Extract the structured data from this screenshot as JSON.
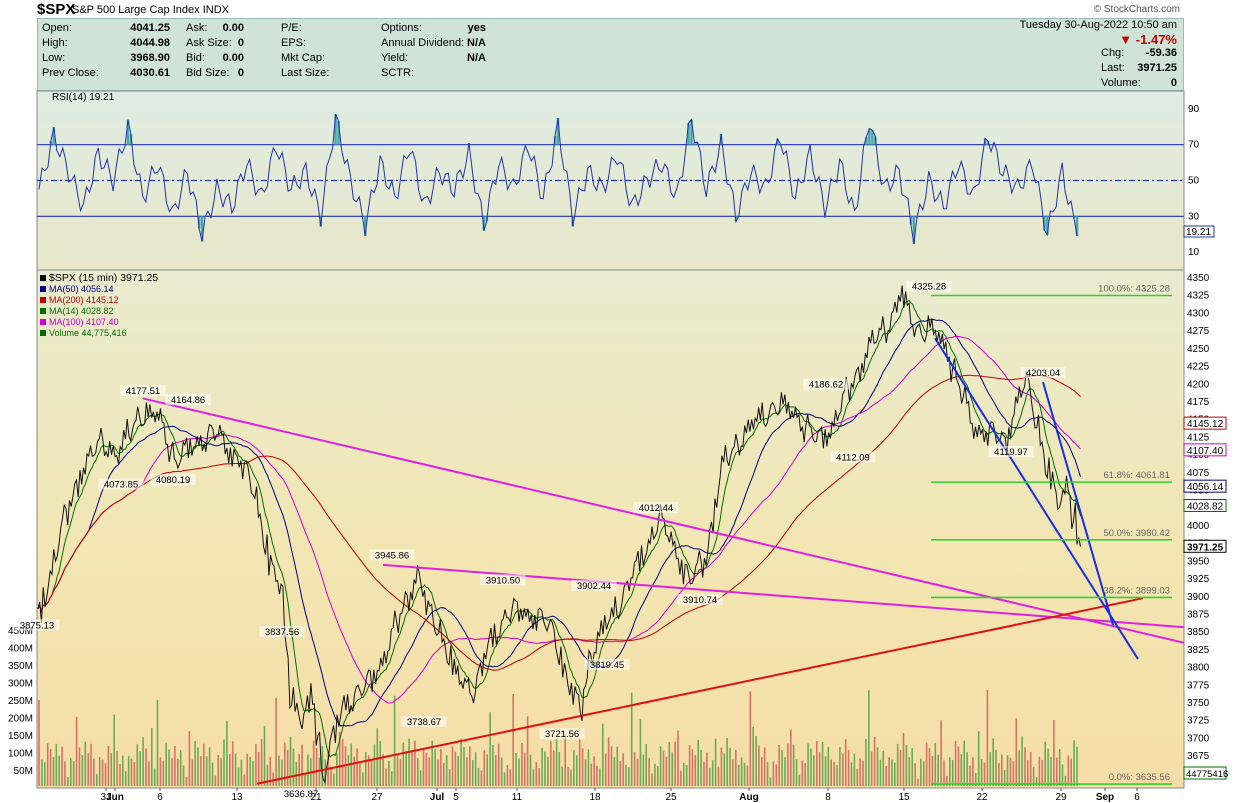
{
  "header": {
    "symbol": "$SPX",
    "name": "S&P 500 Large Cap Index",
    "exchange": "INDX",
    "copyright": "© StockCharts.com"
  },
  "quote": {
    "datetime": "Tuesday  30-Aug-2022 10:50 am",
    "change_pct": "-1.47%",
    "rows": [
      {
        "k1": "Open:",
        "v1": "4041.25",
        "k2": "Ask:",
        "v2": "0.00",
        "k3": "P/E:",
        "k4": "Options:",
        "v4": "yes",
        "k5": "",
        "v5": ""
      },
      {
        "k1": "High:",
        "v1": "4044.98",
        "k2": "Ask Size:",
        "v2": "0",
        "k3": "EPS:",
        "k4": "Annual Dividend:",
        "v4": "N/A",
        "k5": "Chg:",
        "v5": "-59.36"
      },
      {
        "k1": "Low:",
        "v1": "3968.90",
        "k2": "Bid:",
        "v2": "0.00",
        "k3": "Mkt Cap:",
        "k4": "Yield:",
        "v4": "N/A",
        "k5": "Last:",
        "v5": "3971.25"
      },
      {
        "k1": "Prev Close:",
        "v1": "4030.61",
        "k2": "Bid Size:",
        "v2": "0",
        "k3": "Last Size:",
        "k4": "SCTR:",
        "v4": "",
        "k5": "Volume:",
        "v5": "0"
      }
    ]
  },
  "chart_data": {
    "type": "line",
    "title": "$SPX S&P 500 Large Cap Index INDX",
    "interval": "15 min",
    "x_ticks": [
      "31",
      "Jun",
      "6",
      "13",
      "21",
      "27",
      "Jul",
      "5",
      "11",
      "18",
      "25",
      "Aug",
      "8",
      "15",
      "22",
      "29",
      "Sep",
      "6"
    ],
    "price_axis": {
      "ticks": [
        3650,
        3675,
        3700,
        3725,
        3750,
        3775,
        3800,
        3825,
        3850,
        3875,
        3900,
        3925,
        3950,
        3975,
        4000,
        4025,
        4050,
        4075,
        4100,
        4125,
        4150,
        4175,
        4200,
        4225,
        4250,
        4275,
        4300,
        4325,
        4350
      ],
      "ylim": [
        3630,
        4350
      ]
    },
    "volume_axis": {
      "ticks": [
        "50M",
        "100M",
        "150M",
        "200M",
        "250M",
        "300M",
        "350M",
        "400M",
        "450M"
      ]
    },
    "rsi": {
      "label": "RSI(14) 19.21",
      "ticks": [
        10,
        30,
        50,
        70,
        90
      ],
      "ylim": [
        0,
        100
      ],
      "levels": [
        30,
        50,
        70
      ],
      "last": "19.21"
    },
    "legend": [
      {
        "label": "$SPX (15 min) 3971.25",
        "color": "#000000"
      },
      {
        "label": "MA(50) 4056.14",
        "color": "#000080"
      },
      {
        "label": "MA(200) 4145.12",
        "color": "#c00000"
      },
      {
        "label": "MA(14) 4028.82",
        "color": "#007000"
      },
      {
        "label": "MA(100) 4107.40",
        "color": "#d000d0"
      },
      {
        "label": "Volume 44,775,416",
        "color": "#007000"
      }
    ],
    "right_badges": [
      {
        "label": "4145.12",
        "value": 4145.12,
        "color": "#c00000"
      },
      {
        "label": "4107.40",
        "value": 4107.4,
        "color": "#d000d0"
      },
      {
        "label": "4056.14",
        "value": 4056.14,
        "color": "#000080"
      },
      {
        "label": "4028.82",
        "value": 4028.82,
        "color": "#007000"
      },
      {
        "label": "3971.25",
        "value": 3971.25,
        "color": "#000000"
      }
    ],
    "volume_badge": "44775416",
    "price_series": [
      {
        "x": 0,
        "y": 3875
      },
      {
        "x": 4,
        "y": 3990
      },
      {
        "x": 8,
        "y": 4080
      },
      {
        "x": 12,
        "y": 4120
      },
      {
        "x": 15,
        "y": 4100
      },
      {
        "x": 19,
        "y": 4160
      },
      {
        "x": 23,
        "y": 4150
      },
      {
        "x": 26,
        "y": 4090
      },
      {
        "x": 30,
        "y": 4120
      },
      {
        "x": 34,
        "y": 4130
      },
      {
        "x": 38,
        "y": 4090
      },
      {
        "x": 41,
        "y": 4050
      },
      {
        "x": 44,
        "y": 3940
      },
      {
        "x": 46,
        "y": 3910
      },
      {
        "x": 48,
        "y": 3760
      },
      {
        "x": 50,
        "y": 3720
      },
      {
        "x": 52,
        "y": 3760
      },
      {
        "x": 54,
        "y": 3650
      },
      {
        "x": 56,
        "y": 3700
      },
      {
        "x": 58,
        "y": 3750
      },
      {
        "x": 62,
        "y": 3770
      },
      {
        "x": 66,
        "y": 3820
      },
      {
        "x": 70,
        "y": 3900
      },
      {
        "x": 72,
        "y": 3930
      },
      {
        "x": 74,
        "y": 3880
      },
      {
        "x": 76,
        "y": 3860
      },
      {
        "x": 79,
        "y": 3790
      },
      {
        "x": 83,
        "y": 3770
      },
      {
        "x": 86,
        "y": 3840
      },
      {
        "x": 89,
        "y": 3875
      },
      {
        "x": 92,
        "y": 3880
      },
      {
        "x": 95,
        "y": 3870
      },
      {
        "x": 98,
        "y": 3850
      },
      {
        "x": 101,
        "y": 3770
      },
      {
        "x": 103,
        "y": 3740
      },
      {
        "x": 105,
        "y": 3820
      },
      {
        "x": 108,
        "y": 3860
      },
      {
        "x": 111,
        "y": 3900
      },
      {
        "x": 115,
        "y": 3960
      },
      {
        "x": 118,
        "y": 4010
      },
      {
        "x": 121,
        "y": 3970
      },
      {
        "x": 124,
        "y": 3920
      },
      {
        "x": 127,
        "y": 3960
      },
      {
        "x": 130,
        "y": 4080
      },
      {
        "x": 133,
        "y": 4120
      },
      {
        "x": 137,
        "y": 4150
      },
      {
        "x": 140,
        "y": 4170
      },
      {
        "x": 144,
        "y": 4160
      },
      {
        "x": 148,
        "y": 4120
      },
      {
        "x": 151,
        "y": 4140
      },
      {
        "x": 154,
        "y": 4190
      },
      {
        "x": 158,
        "y": 4250
      },
      {
        "x": 162,
        "y": 4290
      },
      {
        "x": 164,
        "y": 4325
      },
      {
        "x": 167,
        "y": 4280
      },
      {
        "x": 170,
        "y": 4275
      },
      {
        "x": 173,
        "y": 4250
      },
      {
        "x": 175,
        "y": 4200
      },
      {
        "x": 178,
        "y": 4140
      },
      {
        "x": 181,
        "y": 4130
      },
      {
        "x": 184,
        "y": 4120
      },
      {
        "x": 186,
        "y": 4170
      },
      {
        "x": 188,
        "y": 4203
      },
      {
        "x": 190,
        "y": 4150
      },
      {
        "x": 192,
        "y": 4080
      },
      {
        "x": 194,
        "y": 4030
      },
      {
        "x": 196,
        "y": 4060
      },
      {
        "x": 198,
        "y": 3971
      }
    ],
    "rsi_series": [
      45,
      75,
      55,
      35,
      65,
      50,
      80,
      40,
      60,
      30,
      55,
      20,
      45,
      35,
      60,
      40,
      70,
      45,
      55,
      30,
      85,
      50,
      25,
      60,
      40,
      70,
      35,
      55,
      45,
      65,
      25,
      60,
      45,
      70,
      40,
      80,
      30,
      55,
      45,
      65,
      35,
      50,
      60,
      40,
      85,
      45,
      70,
      30,
      55,
      45,
      75,
      40,
      65,
      35,
      60,
      30,
      85,
      45,
      55,
      20,
      50,
      35,
      60,
      40,
      75,
      55,
      45,
      60,
      20,
      55,
      19
    ],
    "price_annotations": [
      {
        "label": "3875.13",
        "value": 3875.13
      },
      {
        "label": "4177.51",
        "value": 4177.51
      },
      {
        "label": "4164.86",
        "value": 4164.86
      },
      {
        "label": "4073.85",
        "value": 4073.85
      },
      {
        "label": "4080.19",
        "value": 4080.19
      },
      {
        "label": "3837.56",
        "value": 3837.56
      },
      {
        "label": "3636.87",
        "value": 3636.87
      },
      {
        "label": "3945.86",
        "value": 3945.86
      },
      {
        "label": "3738.67",
        "value": 3738.67
      },
      {
        "label": "3910.50",
        "value": 3910.5
      },
      {
        "label": "3721.56",
        "value": 3721.56
      },
      {
        "label": "3902.44",
        "value": 3902.44
      },
      {
        "label": "3819.45",
        "value": 3819.45
      },
      {
        "label": "4012.44",
        "value": 4012.44
      },
      {
        "label": "3910.74",
        "value": 3910.74
      },
      {
        "label": "4186.62",
        "value": 4186.62
      },
      {
        "label": "4112.09",
        "value": 4112.09
      },
      {
        "label": "4325.28",
        "value": 4325.28
      },
      {
        "label": "4119.97",
        "value": 4119.97
      },
      {
        "label": "4203.04",
        "value": 4203.04
      }
    ],
    "fibonacci": [
      {
        "label": "100.0%: 4325.28",
        "value": 4325.28
      },
      {
        "label": "61.8%: 4061.81",
        "value": 4061.81
      },
      {
        "label": "50.0%: 3980.42",
        "value": 3980.42
      },
      {
        "label": "38.2%: 3899.03",
        "value": 3899.03
      },
      {
        "label": "0.0%: 3635.56",
        "value": 3635.56
      }
    ]
  }
}
